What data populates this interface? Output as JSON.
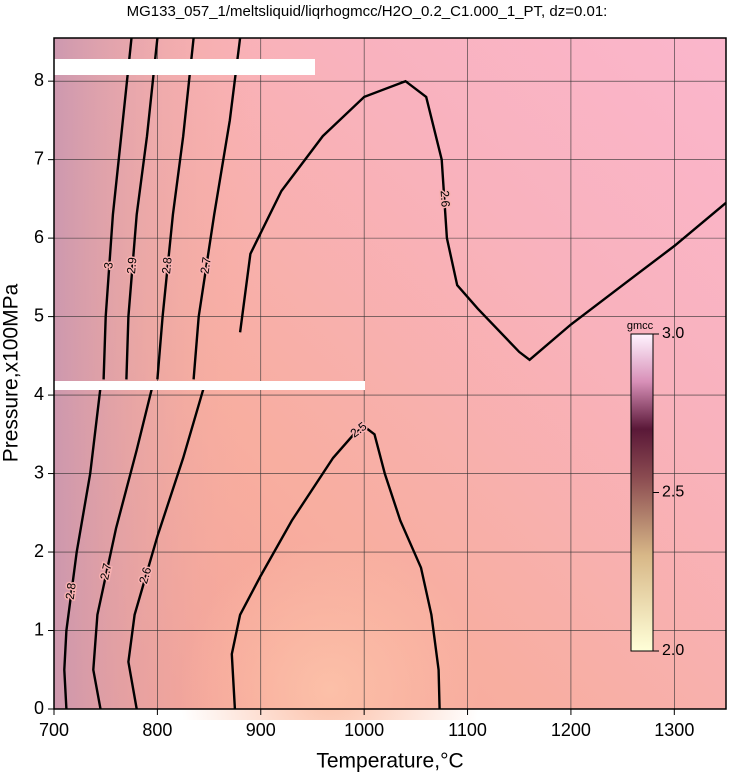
{
  "chart_data": {
    "type": "contour",
    "title": "MG133_057_1/meltsliquid/liqrhogmcc/H2O_0.2_C1.000_1_PT, dz=0.01:",
    "xlabel": "Temperature,°C",
    "ylabel": "Pressure,x100MPa",
    "xlim": [
      700,
      1350
    ],
    "ylim": [
      0,
      8.55
    ],
    "xticks": [
      700,
      800,
      900,
      1000,
      1100,
      1200,
      1300
    ],
    "yticks": [
      0,
      1,
      2,
      3,
      4,
      5,
      6,
      7,
      8
    ],
    "grid": true,
    "color": "#000000",
    "series": [
      {
        "level": 2.6,
        "x": [
          880,
          890,
          920,
          960,
          1000,
          1040,
          1060,
          1075,
          1080,
          1090,
          1110,
          1150,
          1160,
          1200,
          1250,
          1300,
          1350
        ],
        "y": [
          4.8,
          5.8,
          6.6,
          7.3,
          7.8,
          8.0,
          7.8,
          7.0,
          6.0,
          5.4,
          5.1,
          4.55,
          4.45,
          4.9,
          5.4,
          5.9,
          6.45
        ]
      },
      {
        "level": 2.5,
        "x": [
          875,
          872,
          880,
          900,
          930,
          970,
          990,
          1000,
          1010,
          1020,
          1035,
          1055,
          1065,
          1072,
          1073
        ],
        "y": [
          0,
          0.7,
          1.2,
          1.7,
          2.4,
          3.2,
          3.5,
          3.6,
          3.5,
          3.0,
          2.4,
          1.8,
          1.2,
          0.5,
          0
        ]
      },
      {
        "level": 2.8,
        "x": [
          712,
          710,
          712,
          722,
          735,
          745
        ],
        "y": [
          0,
          0.5,
          1,
          2,
          3,
          4.1
        ]
      },
      {
        "level": 2.7,
        "x": [
          745,
          738,
          742,
          760,
          780,
          795
        ],
        "y": [
          0,
          0.5,
          1.2,
          2.3,
          3.3,
          4.1
        ]
      },
      {
        "level": 2.6,
        "x": [
          780,
          772,
          778,
          800,
          825,
          845
        ],
        "y": [
          0,
          0.6,
          1.2,
          2.2,
          3.2,
          4.1
        ]
      },
      {
        "level": 2.7,
        "x": [
          835,
          840,
          855,
          870,
          880
        ],
        "y": [
          4.2,
          5,
          6.3,
          7.5,
          8.55
        ]
      },
      {
        "level": 2.8,
        "x": [
          800,
          805,
          815,
          825,
          835
        ],
        "y": [
          4.2,
          5,
          6.3,
          7.3,
          8.55
        ]
      },
      {
        "level": 2.9,
        "x": [
          770,
          772,
          780,
          790,
          800
        ],
        "y": [
          4.2,
          5,
          6.3,
          7.3,
          8.55
        ]
      },
      {
        "level": 3,
        "x": [
          748,
          750,
          757,
          765,
          775
        ],
        "y": [
          4.2,
          5,
          6.3,
          7.3,
          8.55
        ]
      }
    ],
    "colorbar": {
      "label": "gmcc",
      "lim": [
        2,
        3
      ],
      "ticks": [
        {
          "value": 2,
          "label": "2.0"
        },
        {
          "value": 2.5,
          "label": "2.5"
        },
        {
          "value": 3,
          "label": "3.0"
        }
      ]
    }
  }
}
